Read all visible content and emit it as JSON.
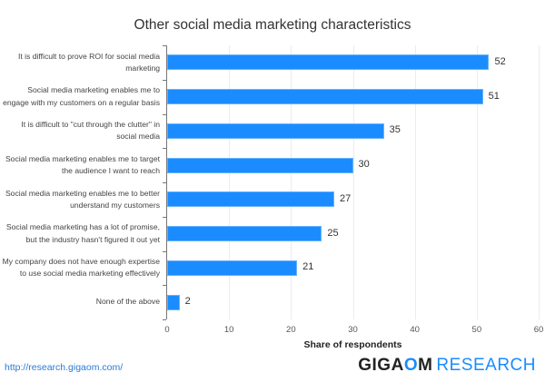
{
  "chart_data": {
    "type": "bar",
    "orientation": "horizontal",
    "title": "Other social media marketing characteristics",
    "xlabel": "Share of respondents",
    "ylabel": "",
    "xlim": [
      0,
      60
    ],
    "xticks": [
      0,
      10,
      20,
      30,
      40,
      50,
      60
    ],
    "grid": true,
    "legend": null,
    "categories": [
      "It is difficult to prove ROI for social media marketing",
      "Social media marketing enables me to engage with my customers on a regular basis",
      "It is difficult to \"cut through the clutter\" in social media",
      "Social media marketing enables me to target the audience I want to reach",
      "Social media marketing enables me to better understand my customers",
      "Social media marketing has a lot of promise, but the industry hasn't figured it out yet",
      "My company does not have enough expertise to use social media marketing effectively",
      "None of the above"
    ],
    "values": [
      52,
      51,
      35,
      30,
      27,
      25,
      21,
      2
    ],
    "bar_color": "#1a8cff"
  },
  "footer": {
    "url": "http://research.gigaom.com/",
    "brand_part1_pre": "GIGA",
    "brand_part1_o": "O",
    "brand_part1_post": "M",
    "brand_part2": "RESEARCH"
  }
}
